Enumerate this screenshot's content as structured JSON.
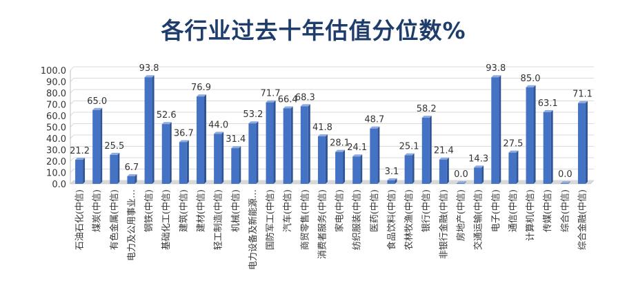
{
  "chart_data": {
    "type": "bar",
    "title": "各行业过去十年估值分位数%",
    "xlabel": "",
    "ylabel": "",
    "ylim": [
      0,
      100
    ],
    "yticks": [
      "0.0",
      "10.0",
      "20.0",
      "30.0",
      "40.0",
      "50.0",
      "60.0",
      "70.0",
      "80.0",
      "90.0",
      "100.0"
    ],
    "grid": true,
    "bar_color": "#4472c4",
    "categories": [
      "石油石化(中信)",
      "煤炭(中信)",
      "有色金属(中信)",
      "电力及公用事业…",
      "钢铁(中信)",
      "基础化工(中信)",
      "建筑(中信)",
      "建材(中信)",
      "轻工制造(中信)",
      "机械(中信)",
      "电力设备及新能源…",
      "国防军工(中信)",
      "汽车(中信)",
      "商贸零售(中信)",
      "消费者服务(中信)",
      "家电(中信)",
      "纺织服装(中信)",
      "医药(中信)",
      "食品饮料(中信)",
      "农林牧渔(中信)",
      "银行(中信)",
      "非银行金融(中信)",
      "房地产(中信)",
      "交通运输(中信)",
      "电子(中信)",
      "通信(中信)",
      "计算机(中信)",
      "传媒(中信)",
      "综合(中信)",
      "综合金融(中信)"
    ],
    "values": [
      21.2,
      65.0,
      25.5,
      6.7,
      93.8,
      52.6,
      36.7,
      76.9,
      44.0,
      31.4,
      53.2,
      71.7,
      66.4,
      68.3,
      41.8,
      28.1,
      24.1,
      48.7,
      3.1,
      25.1,
      58.2,
      21.4,
      0.0,
      14.3,
      93.8,
      27.5,
      85.0,
      63.1,
      0.0,
      71.1
    ],
    "data_labels": [
      "21.2",
      "65.0",
      "25.5",
      "6.7",
      "93.8",
      "52.6",
      "36.7",
      "76.9",
      "44.0",
      "31.4",
      "53.2",
      "71.7",
      "66.4",
      "68.3",
      "41.8",
      "28.1",
      "24.1",
      "48.7",
      "3.1",
      "25.1",
      "58.2",
      "21.4",
      "0.0",
      "14.3",
      "93.8",
      "27.5",
      "85.0",
      "63.1",
      "0.0",
      "71.1"
    ]
  }
}
